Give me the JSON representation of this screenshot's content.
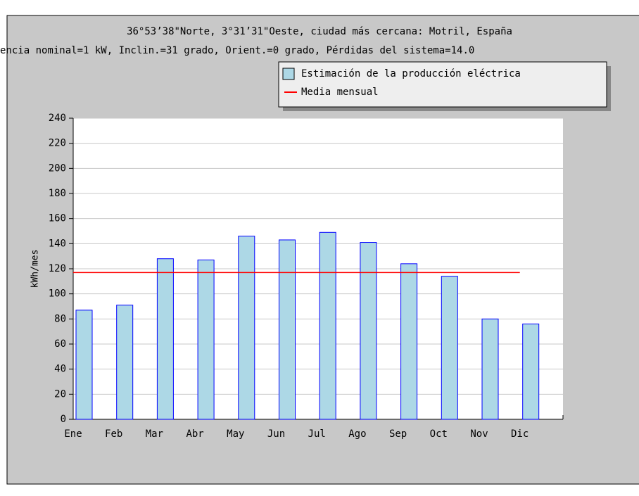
{
  "chart_data": {
    "type": "bar",
    "title": "36°53’38\"Norte, 3°31’31\"Oeste, ciudad más cercana: Motril, España",
    "subtitle": "encia nominal=1 kW, Inclin.=31 grado, Orient.=0 grado, Pérdidas del sistema=14.0",
    "y_label": "kWh/mes",
    "categories": [
      "Ene",
      "Feb",
      "Mar",
      "Abr",
      "May",
      "Jun",
      "Jul",
      "Ago",
      "Sep",
      "Oct",
      "Nov",
      "Dic"
    ],
    "series": [
      {
        "name": "Estimación de la producción eléctrica",
        "color": "#add8e6",
        "edge": "#0000ff",
        "values": [
          87,
          91,
          128,
          127,
          146,
          143,
          149,
          141,
          124,
          114,
          80,
          76
        ]
      },
      {
        "name": "Media mensual",
        "type": "line",
        "color": "#ff0000",
        "values": [
          117,
          117,
          117,
          117,
          117,
          117,
          117,
          117,
          117,
          117,
          117,
          117
        ]
      }
    ],
    "ylim": [
      0,
      240
    ],
    "yticks": [
      0,
      20,
      40,
      60,
      80,
      100,
      120,
      140,
      160,
      180,
      200,
      220,
      240
    ],
    "grid": true
  }
}
